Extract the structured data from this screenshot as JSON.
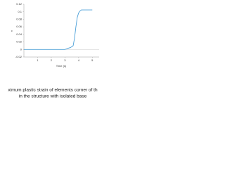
{
  "chart_data": {
    "type": "line",
    "x_label": "Time (s)",
    "y_label": "ε",
    "caption": [
      "ximum plastic strain of elements corner of th",
      "in the structure with isolated base"
    ],
    "x": [
      0,
      3.0,
      3.2,
      3.4,
      3.6,
      3.7,
      3.8,
      3.9,
      4.0,
      4.1,
      4.2,
      4.5,
      5.0
    ],
    "series": [
      {
        "name": "ε",
        "color": "#4a9fd8",
        "values": [
          0,
          0,
          0.003,
          0.005,
          0.01,
          0.03,
          0.06,
          0.085,
          0.097,
          0.102,
          0.105,
          0.105,
          0.105
        ]
      }
    ],
    "xlim": [
      0,
      5.5
    ],
    "xticks": [
      1,
      2,
      3,
      4,
      5
    ],
    "ylim": [
      -0.02,
      0.12
    ],
    "yticks": [
      -0.02,
      0,
      0.02,
      0.04,
      0.06,
      0.08,
      0.1,
      0.12
    ],
    "grid": false
  }
}
